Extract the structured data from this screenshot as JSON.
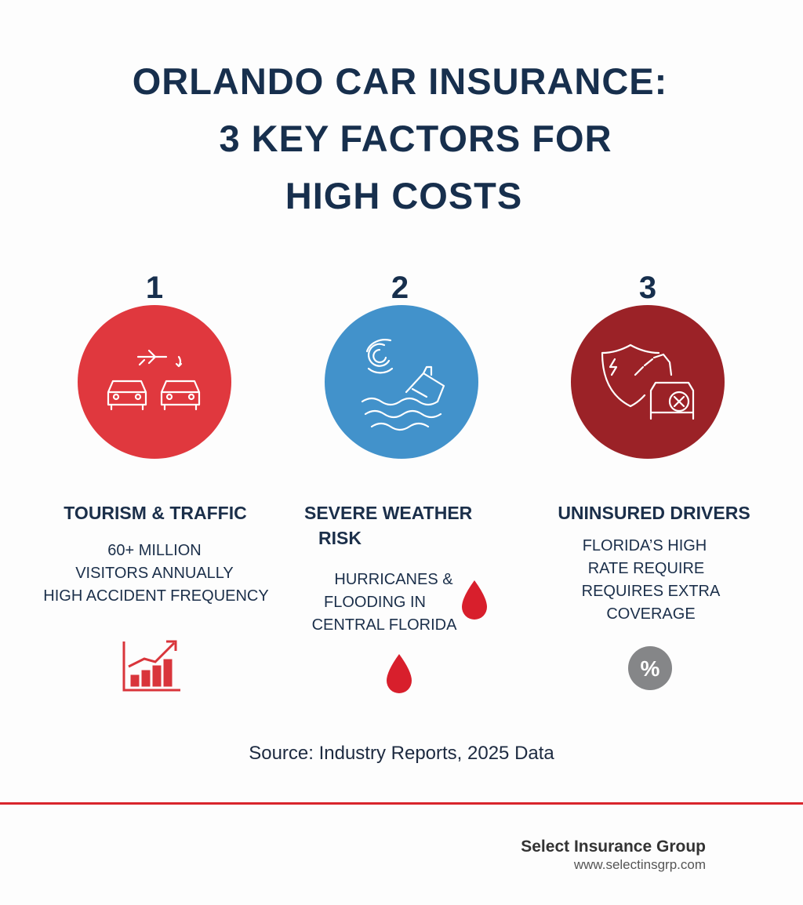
{
  "header": {
    "title_lines": [
      "ORLANDO CAR INSURANCE:",
      "3 KEY FACTORS FOR",
      "HIGH COSTS"
    ]
  },
  "factors": [
    {
      "number": "1",
      "heading_lines": [
        "TOURISM & TRAFFIC"
      ],
      "body_lines": [
        "60+ MILLION",
        "VISITORS ANNUALLY",
        "HIGH ACCIDENT FREQUENCY"
      ]
    },
    {
      "number": "2",
      "heading_lines": [
        "SEVERE WEATHER",
        "RISK"
      ],
      "body_lines": [
        "HURRICANES &",
        "FLOODING IN",
        "CENTRAL FLORIDA"
      ]
    },
    {
      "number": "3",
      "heading_lines": [
        "UNINSURED DRIVERS"
      ],
      "body_lines": [
        "FLORIDA’S HIGH",
        "RATE REQUIRE",
        "REQUIRES EXTRA",
        "COVERAGE"
      ],
      "badge": "%"
    }
  ],
  "source": "Source: Industry Reports, 2025 Data",
  "footer": {
    "company": "Select Insurance Group",
    "website": "www.selectinsgrp.com"
  }
}
